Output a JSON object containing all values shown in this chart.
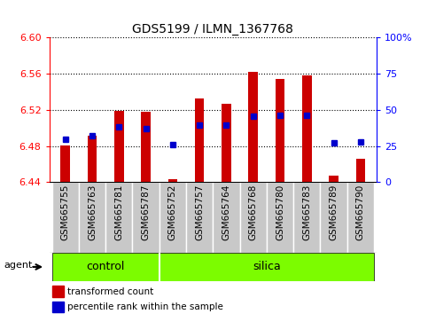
{
  "title": "GDS5199 / ILMN_1367768",
  "samples": [
    "GSM665755",
    "GSM665763",
    "GSM665781",
    "GSM665787",
    "GSM665752",
    "GSM665757",
    "GSM665764",
    "GSM665768",
    "GSM665780",
    "GSM665783",
    "GSM665789",
    "GSM665790"
  ],
  "red_values": [
    6.481,
    6.491,
    6.519,
    6.518,
    6.443,
    6.533,
    6.527,
    6.562,
    6.554,
    6.558,
    6.447,
    6.466
  ],
  "blue_values": [
    6.487,
    6.491,
    6.501,
    6.499,
    6.482,
    6.503,
    6.503,
    6.513,
    6.514,
    6.514,
    6.484,
    6.485
  ],
  "ylim_left": [
    6.44,
    6.6
  ],
  "ylim_right": [
    0,
    100
  ],
  "yticks_left": [
    6.44,
    6.48,
    6.52,
    6.56,
    6.6
  ],
  "yticks_right": [
    0,
    25,
    50,
    75,
    100
  ],
  "bar_color": "#cc0000",
  "blue_color": "#0000cc",
  "bar_base": 6.44,
  "control_color": "#7cfc00",
  "silica_color": "#7cfc00",
  "bg_color": "#ffffff",
  "tick_area_color": "#c8c8c8",
  "bar_width": 0.35,
  "blue_marker_size": 5
}
